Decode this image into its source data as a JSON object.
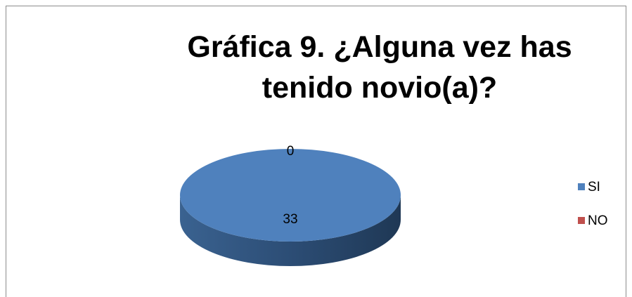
{
  "chart_data": {
    "type": "pie",
    "title": "Gráfica 9. ¿Alguna vez has tenido novio(a)?",
    "categories": [
      "SI",
      "NO"
    ],
    "values": [
      33,
      0
    ],
    "colors": [
      "#4f81bd",
      "#c0504d"
    ],
    "legend": "right"
  }
}
